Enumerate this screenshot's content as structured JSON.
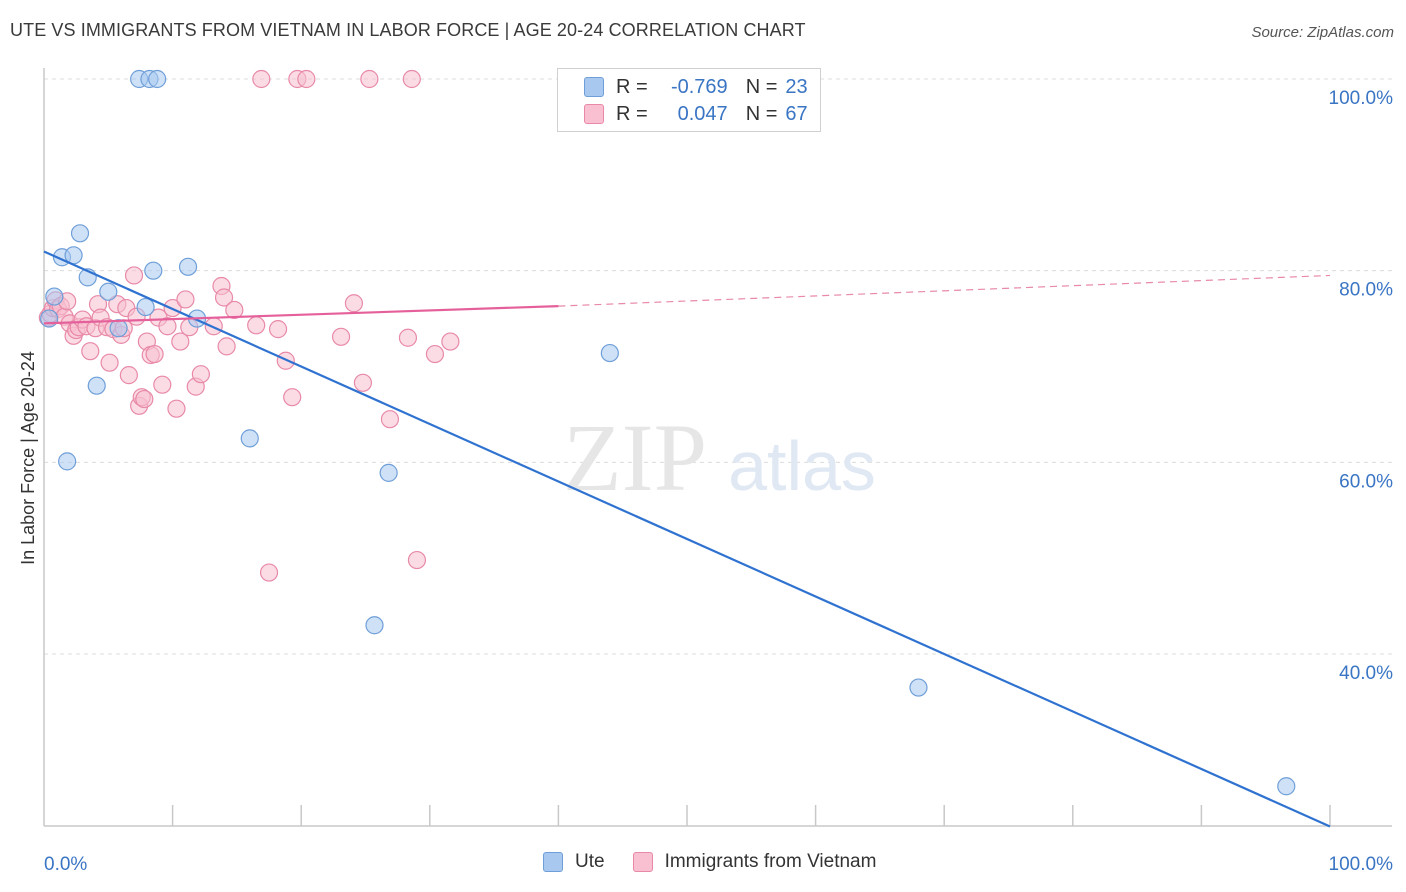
{
  "title": "UTE VS IMMIGRANTS FROM VIETNAM IN LABOR FORCE | AGE 20-24 CORRELATION CHART",
  "source": "Source: ZipAtlas.com",
  "watermark": {
    "zip": "ZIP",
    "atlas": "atlas"
  },
  "legend": {
    "r_label": "R =",
    "n_label": "N =",
    "rows": [
      {
        "r": "-0.769",
        "n": "23",
        "color": "#a8c8f0",
        "stroke": "#6f9fd8"
      },
      {
        "r": "0.047",
        "n": "67",
        "color": "#f8c0d0",
        "stroke": "#e889a8"
      }
    ]
  },
  "bottom_legend": [
    {
      "label": "Ute",
      "color": "#a8c8f0",
      "stroke": "#6f9fd8"
    },
    {
      "label": "Immigrants from Vietnam",
      "color": "#f8c0d0",
      "stroke": "#e889a8"
    }
  ],
  "chart_data": {
    "type": "scatter",
    "title": "UTE VS IMMIGRANTS FROM VIETNAM IN LABOR FORCE | AGE 20-24 CORRELATION CHART",
    "xlabel": "",
    "ylabel": "In Labor Force | Age 20-24",
    "xlim": [
      0,
      100
    ],
    "ylim": [
      21,
      102
    ],
    "x_tick_labels": [
      "0.0%",
      "100.0%"
    ],
    "y_ticks": [
      {
        "value": 100,
        "label": "100.0%"
      },
      {
        "value": 80,
        "label": "80.0%"
      },
      {
        "value": 60,
        "label": "60.0%"
      },
      {
        "value": 40,
        "label": "40.0%"
      }
    ],
    "grid": "horizontal dashed",
    "legend_position": "top-center",
    "series": [
      {
        "name": "Ute",
        "color": "#6f9fd8",
        "fill": "#a8c8f0",
        "points": [
          [
            0.4,
            75.0
          ],
          [
            0.8,
            77.3
          ],
          [
            1.4,
            81.4
          ],
          [
            1.8,
            60.1
          ],
          [
            2.3,
            81.6
          ],
          [
            2.8,
            83.9
          ],
          [
            3.4,
            79.3
          ],
          [
            4.1,
            68.0
          ],
          [
            5.0,
            77.8
          ],
          [
            5.8,
            74.0
          ],
          [
            7.4,
            100
          ],
          [
            8.2,
            100
          ],
          [
            8.8,
            100
          ],
          [
            7.9,
            76.2
          ],
          [
            8.5,
            80.0
          ],
          [
            11.2,
            80.4
          ],
          [
            11.9,
            75.0
          ],
          [
            16.0,
            62.5
          ],
          [
            25.7,
            43.0
          ],
          [
            26.8,
            58.9
          ],
          [
            44.0,
            71.4
          ],
          [
            68.0,
            36.5
          ],
          [
            96.6,
            26.2
          ]
        ],
        "trend": {
          "x": [
            0,
            100
          ],
          "y": [
            82.0,
            22.0
          ],
          "style": "solid"
        }
      },
      {
        "name": "Immigrants from Vietnam",
        "color": "#e889a8",
        "fill": "#f8c0d0",
        "points": [
          [
            0.3,
            75.1
          ],
          [
            0.5,
            75.5
          ],
          [
            0.7,
            76.1
          ],
          [
            0.9,
            76.9
          ],
          [
            1.1,
            76.0
          ],
          [
            1.3,
            76.3
          ],
          [
            1.6,
            75.2
          ],
          [
            1.8,
            76.8
          ],
          [
            2.0,
            74.5
          ],
          [
            2.3,
            73.2
          ],
          [
            2.5,
            73.8
          ],
          [
            2.7,
            74.1
          ],
          [
            3.0,
            74.9
          ],
          [
            3.3,
            74.2
          ],
          [
            3.6,
            71.6
          ],
          [
            4.0,
            74.0
          ],
          [
            4.2,
            76.5
          ],
          [
            4.4,
            75.1
          ],
          [
            4.9,
            74.1
          ],
          [
            5.1,
            70.4
          ],
          [
            5.4,
            73.9
          ],
          [
            5.7,
            76.5
          ],
          [
            6.0,
            73.3
          ],
          [
            6.2,
            74.0
          ],
          [
            6.4,
            76.1
          ],
          [
            6.6,
            69.1
          ],
          [
            7.0,
            79.5
          ],
          [
            7.2,
            75.2
          ],
          [
            7.4,
            65.9
          ],
          [
            7.6,
            66.8
          ],
          [
            7.8,
            66.6
          ],
          [
            8.0,
            72.6
          ],
          [
            8.3,
            71.2
          ],
          [
            8.6,
            71.3
          ],
          [
            8.9,
            75.1
          ],
          [
            9.2,
            68.1
          ],
          [
            9.6,
            74.2
          ],
          [
            10.0,
            76.1
          ],
          [
            10.3,
            65.6
          ],
          [
            10.6,
            72.6
          ],
          [
            11.0,
            77.0
          ],
          [
            11.3,
            74.1
          ],
          [
            11.8,
            67.9
          ],
          [
            12.2,
            69.2
          ],
          [
            13.2,
            74.2
          ],
          [
            13.8,
            78.4
          ],
          [
            14.0,
            77.2
          ],
          [
            14.2,
            72.1
          ],
          [
            14.8,
            75.9
          ],
          [
            16.5,
            74.3
          ],
          [
            17.5,
            48.5
          ],
          [
            18.2,
            73.9
          ],
          [
            18.8,
            70.6
          ],
          [
            19.3,
            66.8
          ],
          [
            19.7,
            100
          ],
          [
            20.4,
            100
          ],
          [
            23.1,
            73.1
          ],
          [
            24.1,
            76.6
          ],
          [
            24.8,
            68.3
          ],
          [
            25.3,
            100
          ],
          [
            26.9,
            64.5
          ],
          [
            28.3,
            73.0
          ],
          [
            28.6,
            100
          ],
          [
            29.0,
            49.8
          ],
          [
            30.4,
            71.3
          ],
          [
            31.6,
            72.6
          ],
          [
            16.9,
            100
          ]
        ],
        "trend": {
          "x": [
            0,
            40,
            100
          ],
          "y": [
            74.5,
            76.3,
            79.5
          ],
          "style": "solid-then-dashed"
        }
      }
    ]
  }
}
